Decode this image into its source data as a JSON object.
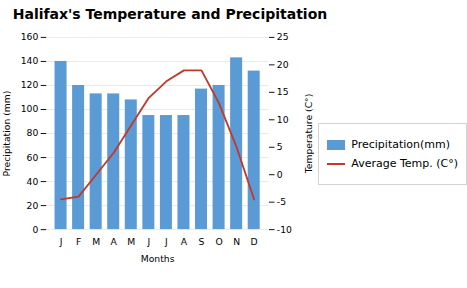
{
  "chart_data": {
    "type": "bar",
    "title": "Halifax's Temperature and Precipitation",
    "xlabel": "Months",
    "ylabel": "Precipitation (mm)",
    "y2label": "Temperature (C°)",
    "categories": [
      "J",
      "F",
      "M",
      "A",
      "M",
      "J",
      "J",
      "A",
      "S",
      "O",
      "N",
      "D"
    ],
    "series": [
      {
        "name": "Precipitation(mm)",
        "type": "bar",
        "color": "#5B9BD5",
        "values": [
          140,
          120,
          113,
          113,
          108,
          95,
          95,
          95,
          117,
          120,
          143,
          132
        ]
      },
      {
        "name": "Average Temp. (C°)",
        "type": "line",
        "axis": "y2",
        "color": "#C0392B",
        "values": [
          -4.5,
          -4.0,
          0,
          4,
          9,
          14,
          17,
          19,
          19,
          13,
          5,
          -4.5
        ]
      }
    ],
    "ylim": [
      0,
      160
    ],
    "yticks": [
      0,
      20,
      40,
      60,
      80,
      100,
      120,
      140,
      160
    ],
    "y2lim": [
      -10,
      25
    ],
    "y2ticks": [
      -10,
      -5,
      0,
      5,
      10,
      15,
      20,
      25
    ],
    "grid": true,
    "legend": "right"
  }
}
